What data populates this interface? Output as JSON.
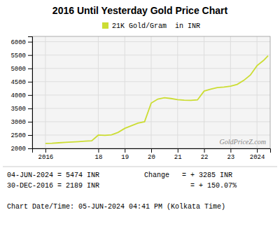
{
  "chart_data": {
    "type": "line",
    "title": "2016 Until Yesterday Gold Price Chart",
    "x": [
      2016.0,
      2016.25,
      2016.5,
      2016.75,
      2017.0,
      2017.25,
      2017.5,
      2017.75,
      2018.0,
      2018.25,
      2018.5,
      2018.75,
      2019.0,
      2019.25,
      2019.5,
      2019.75,
      2020.0,
      2020.25,
      2020.5,
      2020.75,
      2021.0,
      2021.25,
      2021.5,
      2021.75,
      2022.0,
      2022.25,
      2022.5,
      2022.75,
      2023.0,
      2023.25,
      2023.5,
      2023.75,
      2024.0,
      2024.25,
      2024.42
    ],
    "series": [
      {
        "name": "21K Gold/Gram  in INR",
        "color": "#ccdd33",
        "values": [
          2189,
          2195,
          2210,
          2225,
          2240,
          2255,
          2270,
          2285,
          2500,
          2490,
          2510,
          2600,
          2750,
          2850,
          2950,
          3000,
          3700,
          3850,
          3900,
          3870,
          3830,
          3810,
          3800,
          3820,
          4150,
          4220,
          4280,
          4300,
          4330,
          4400,
          4550,
          4750,
          5100,
          5300,
          5474
        ]
      }
    ],
    "xlim": [
      2015.5,
      2024.5
    ],
    "xticks": [
      2016,
      {
        "value": 2018,
        "label": "18"
      },
      {
        "value": 2019,
        "label": "19"
      },
      {
        "value": 2020,
        "label": "20"
      },
      {
        "value": 2021,
        "label": "21"
      },
      {
        "value": 2022,
        "label": "22"
      },
      {
        "value": 2023,
        "label": "23"
      },
      2024
    ],
    "ylim": [
      2000,
      6200
    ],
    "yticks": [
      2000,
      2500,
      3000,
      3500,
      4000,
      4500,
      5000,
      5500,
      6000
    ],
    "grid": true,
    "legend": "top",
    "annotations": [
      "GoldPriceZ.com",
      "04-JUN-2024 = 5474 INR",
      "30-DEC-2016 = 2189 INR",
      "Change   = + 3285 INR",
      "           = + 150.07%",
      "Chart Date/Time: 05-JUN-2024 04:41 PM (Kolkata Time)"
    ]
  }
}
